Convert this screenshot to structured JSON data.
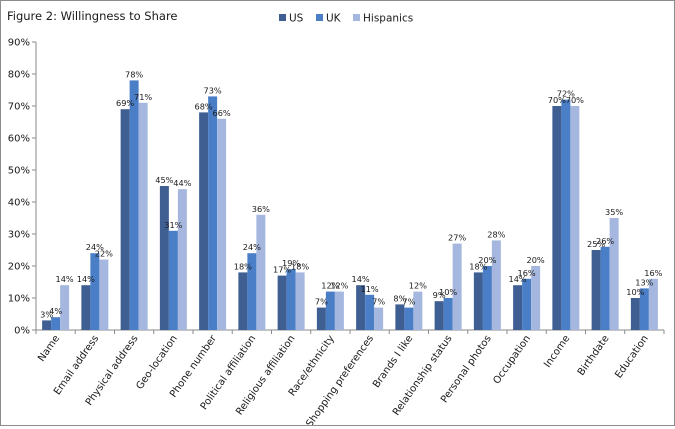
{
  "chart_data": {
    "type": "bar",
    "title": "Figure 2: Willingness to Share",
    "xlabel": "",
    "ylabel": "",
    "ylim": [
      0,
      90
    ],
    "yticks": [
      "0%",
      "10%",
      "20%",
      "30%",
      "40%",
      "50%",
      "60%",
      "70%",
      "80%",
      "90%"
    ],
    "legend_position": "top-center",
    "categories": [
      "Name",
      "Email address",
      "Physical address",
      "Geo-location",
      "Phone number",
      "Political affiliation",
      "Religious affiliation",
      "Race/ethnicity",
      "Shopping preferences",
      "Brands I like",
      "Relationship status",
      "Personal photos",
      "Occupation",
      "Income",
      "Birthdate",
      "Education"
    ],
    "series": [
      {
        "name": "US",
        "color": "#3f5f93",
        "values": [
          3,
          14,
          69,
          45,
          68,
          18,
          17,
          7,
          14,
          8,
          9,
          18,
          14,
          70,
          25,
          10
        ]
      },
      {
        "name": "UK",
        "color": "#4a7ec6",
        "values": [
          4,
          24,
          78,
          31,
          73,
          24,
          19,
          12,
          11,
          7,
          10,
          20,
          16,
          72,
          26,
          13
        ]
      },
      {
        "name": "Hispanics",
        "color": "#a5b7de",
        "values": [
          14,
          22,
          71,
          44,
          66,
          36,
          18,
          12,
          7,
          12,
          27,
          28,
          20,
          70,
          35,
          16
        ]
      }
    ]
  }
}
